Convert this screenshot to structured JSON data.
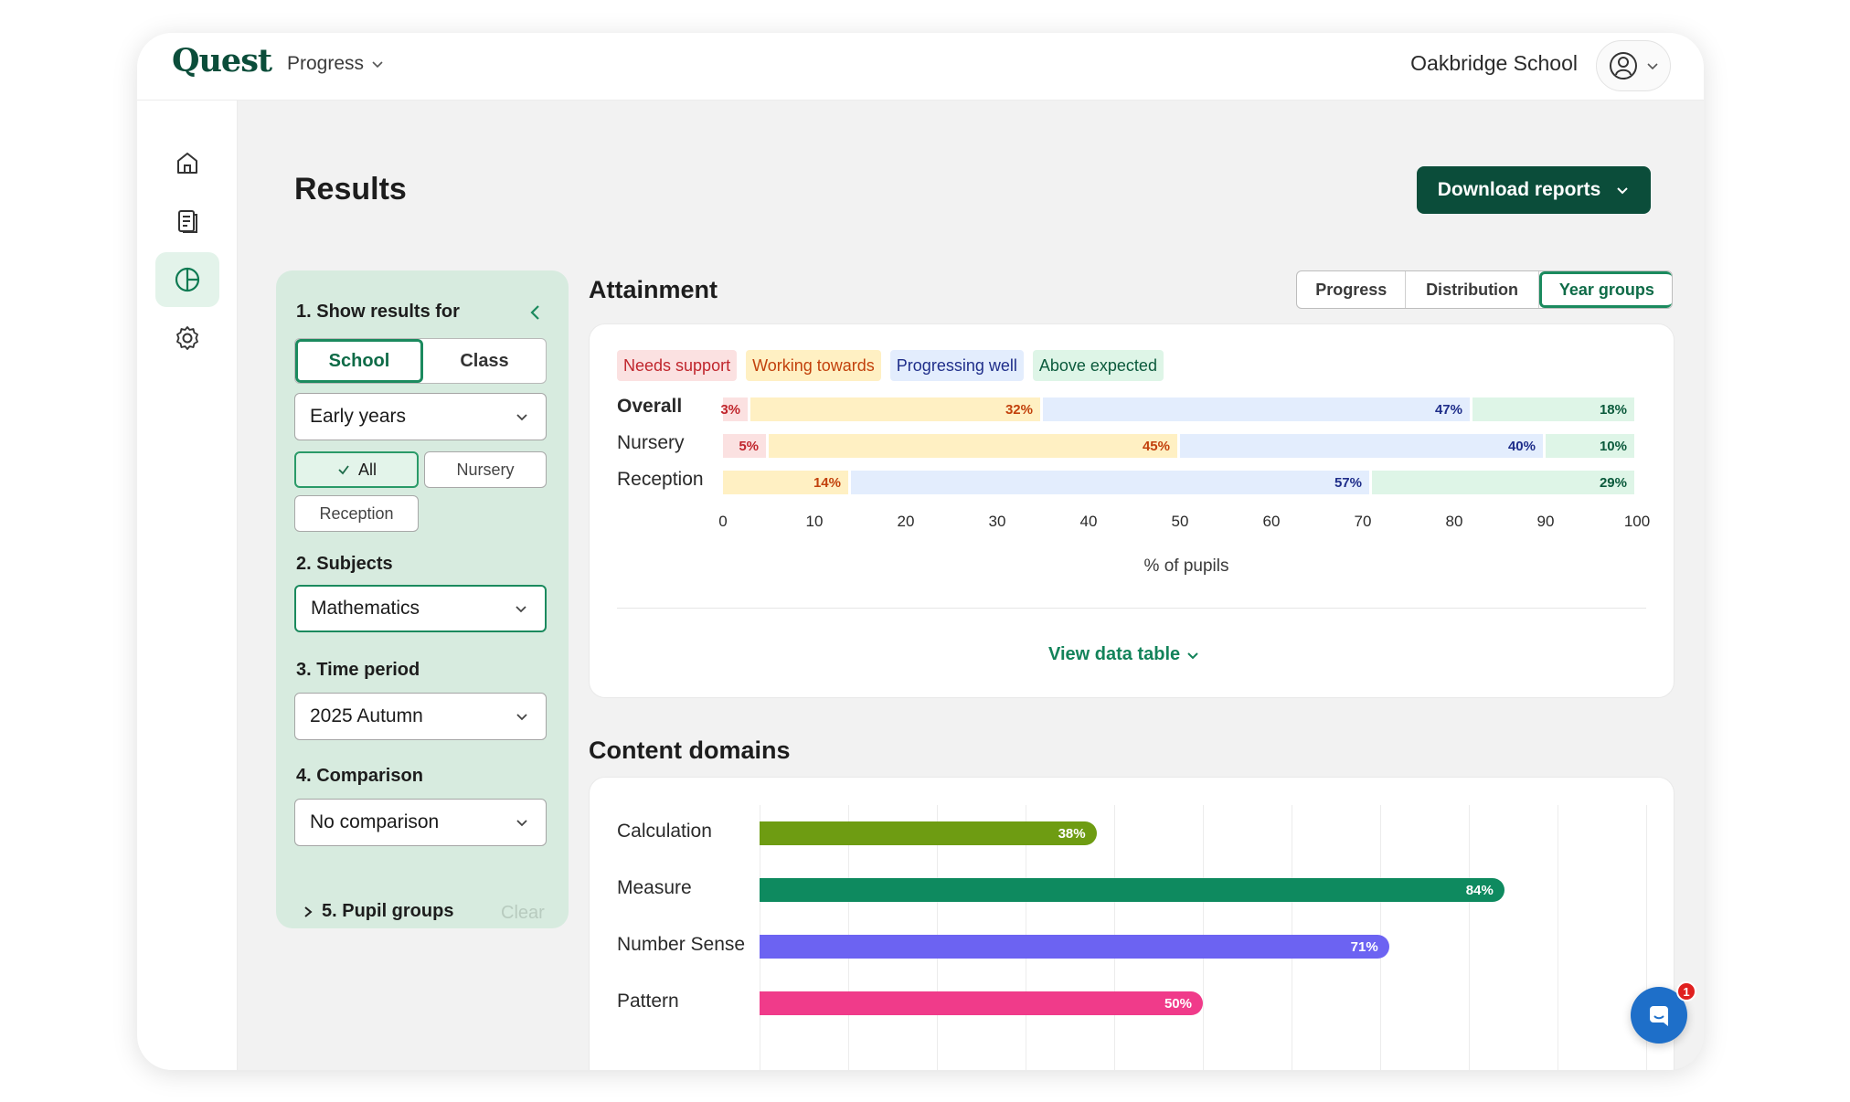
{
  "header": {
    "logo": "Quest",
    "nav_label": "Progress",
    "school": "Oakbridge School"
  },
  "sidebar": {
    "items": [
      {
        "name": "home",
        "icon": "home-icon"
      },
      {
        "name": "reports",
        "icon": "document-icon"
      },
      {
        "name": "results",
        "icon": "pie-chart-icon",
        "active": true
      },
      {
        "name": "settings",
        "icon": "gear-icon"
      }
    ]
  },
  "page": {
    "title": "Results",
    "download_label": "Download reports"
  },
  "filters": {
    "show_results_heading": "1. Show results for",
    "scope_options": [
      "School",
      "Class"
    ],
    "scope_selected": "School",
    "stage_value": "Early years",
    "year_chips": [
      {
        "label": "All",
        "selected": true
      },
      {
        "label": "Nursery",
        "selected": false
      },
      {
        "label": "Reception",
        "selected": false
      }
    ],
    "subjects_heading": "2. Subjects",
    "subject_value": "Mathematics",
    "time_heading": "3. Time period",
    "time_value": "2025 Autumn",
    "comparison_heading": "4. Comparison",
    "comparison_value": "No comparison",
    "pupil_groups_label": "5. Pupil groups",
    "clear_label": "Clear"
  },
  "attainment": {
    "title": "Attainment",
    "views": [
      "Progress",
      "Distribution",
      "Year groups"
    ],
    "selected_view": "Year groups",
    "view_table_label": "View data table"
  },
  "content_domains": {
    "title": "Content domains"
  },
  "colors": {
    "needs_support": "#fbe1e1",
    "needs_support_text": "#c0262d",
    "working_towards": "#fff0c3",
    "working_towards_text": "#c2410c",
    "progressing_well": "#e3edfd",
    "progressing_well_text": "#1f2e8a",
    "above_expected": "#def5e7",
    "above_expected_text": "#0b5a3c",
    "brand": "#0b4d3a",
    "calculation": "#6e9c12",
    "measure": "#0e8a5f",
    "number_sense": "#6c63f2",
    "pattern": "#f03b8a"
  },
  "chat": {
    "badge": "1"
  },
  "chart_data": [
    {
      "type": "bar",
      "orientation": "horizontal-stacked",
      "title": "Attainment",
      "categories": [
        "Overall",
        "Nursery",
        "Reception"
      ],
      "series": [
        {
          "name": "Needs support",
          "values": [
            3,
            5,
            0
          ]
        },
        {
          "name": "Working towards",
          "values": [
            32,
            45,
            14
          ]
        },
        {
          "name": "Progressing well",
          "values": [
            47,
            40,
            57
          ]
        },
        {
          "name": "Above expected",
          "values": [
            18,
            10,
            29
          ]
        }
      ],
      "xlabel": "% of pupils",
      "xlim": [
        0,
        100
      ],
      "xticks": [
        0,
        10,
        20,
        30,
        40,
        50,
        60,
        70,
        80,
        90,
        100
      ],
      "legend": "top-left"
    },
    {
      "type": "bar",
      "orientation": "horizontal",
      "title": "Content domains",
      "categories": [
        "Calculation",
        "Measure",
        "Number Sense",
        "Pattern"
      ],
      "values": [
        38,
        84,
        71,
        50
      ],
      "xlim": [
        0,
        100
      ]
    }
  ]
}
